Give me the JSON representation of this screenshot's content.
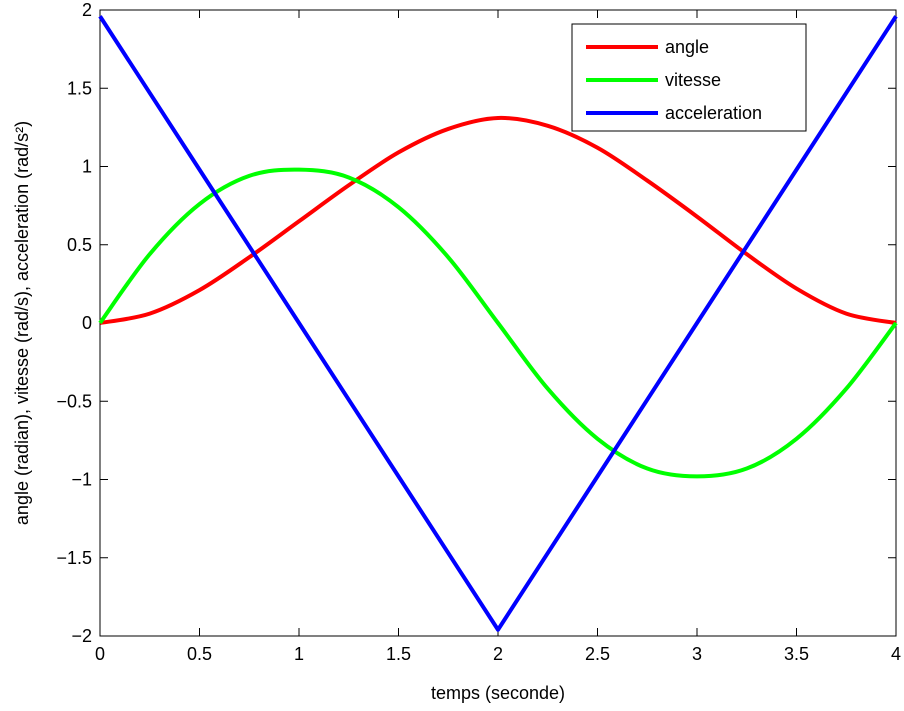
{
  "chart_data": {
    "type": "line",
    "title": "",
    "xlabel": "temps (seconde)",
    "ylabel": "angle (radian), vitesse (rad/s), acceleration (rad/s²)",
    "xlim": [
      0,
      4
    ],
    "ylim": [
      -2,
      2
    ],
    "xticks": [
      0,
      0.5,
      1,
      1.5,
      2,
      2.5,
      3,
      3.5,
      4
    ],
    "xtick_labels": [
      "0",
      "0.5",
      "1",
      "1.5",
      "2",
      "2.5",
      "3",
      "3.5",
      "4"
    ],
    "yticks": [
      -2,
      -1.5,
      -1,
      -0.5,
      0,
      0.5,
      1,
      1.5,
      2
    ],
    "ytick_labels": [
      "−2",
      "−1.5",
      "−1",
      "−0.5",
      "0",
      "0.5",
      "1",
      "1.5",
      "2"
    ],
    "grid": false,
    "legend_position": "top-right",
    "x": [
      0,
      0.25,
      0.5,
      0.75,
      1,
      1.25,
      1.5,
      1.75,
      2,
      2.25,
      2.5,
      2.75,
      3,
      3.25,
      3.5,
      3.75,
      4
    ],
    "series": [
      {
        "name": "angle",
        "color": "#ff0000",
        "values": [
          0,
          0.06,
          0.21,
          0.42,
          0.65,
          0.88,
          1.09,
          1.24,
          1.31,
          1.26,
          1.12,
          0.91,
          0.68,
          0.44,
          0.22,
          0.06,
          0
        ]
      },
      {
        "name": "vitesse",
        "color": "#00ff00",
        "values": [
          0,
          0.44,
          0.76,
          0.94,
          0.98,
          0.93,
          0.74,
          0.42,
          0,
          -0.42,
          -0.74,
          -0.93,
          -0.98,
          -0.93,
          -0.74,
          -0.42,
          0
        ]
      },
      {
        "name": "acceleration",
        "color": "#0000ff",
        "values": [
          1.96,
          1.47,
          0.98,
          0.49,
          0,
          -0.49,
          -0.98,
          -1.47,
          -1.96,
          -1.47,
          -0.98,
          -0.49,
          0,
          0.49,
          0.98,
          1.47,
          1.96
        ]
      }
    ]
  }
}
